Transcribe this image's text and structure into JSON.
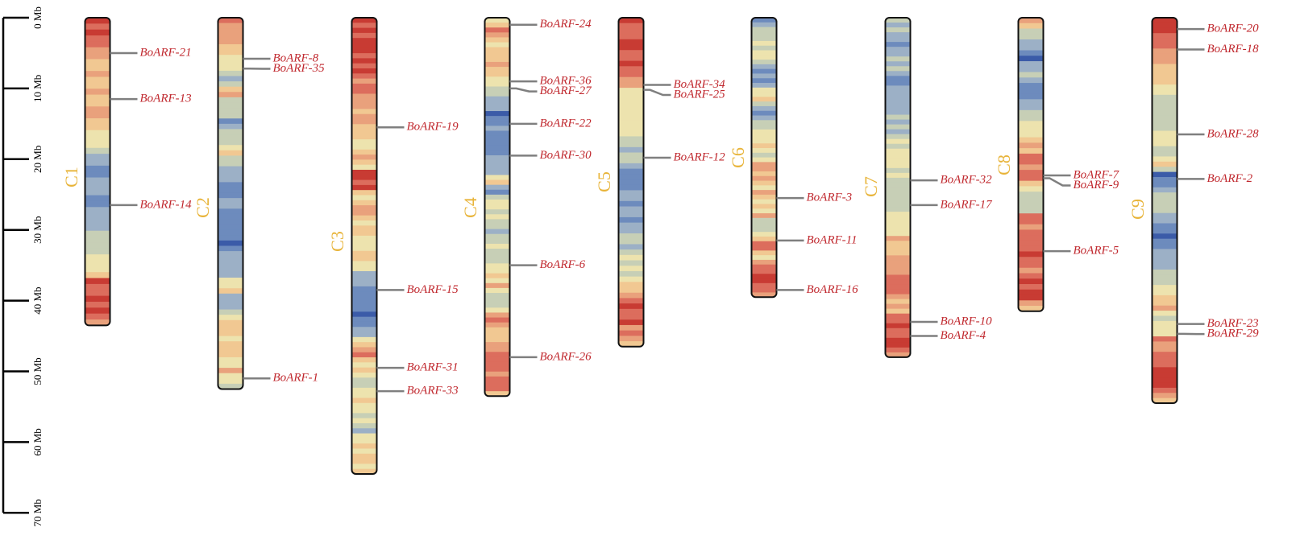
{
  "colors": {
    "gene_label": "#c0282e",
    "chromosome_label": "#e8b43a",
    "connector": "#7f7f7f",
    "outline": "#111111",
    "heat_palette": [
      "#3b5ba8",
      "#6d8bbd",
      "#9cb0c6",
      "#c7cfb6",
      "#ede3ae",
      "#f1c892",
      "#e9a17c",
      "#dc6d5d",
      "#c83b33"
    ]
  },
  "scale": {
    "max_mb": 70,
    "ticks": [
      {
        "value": 0,
        "label": "0 Mb"
      },
      {
        "value": 10,
        "label": "10 Mb"
      },
      {
        "value": 20,
        "label": "20 Mb"
      },
      {
        "value": 30,
        "label": "30 Mb"
      },
      {
        "value": 40,
        "label": "40 Mb"
      },
      {
        "value": 50,
        "label": "50 Mb"
      },
      {
        "value": 60,
        "label": "60 Mb"
      },
      {
        "value": 70,
        "label": "70 Mb"
      }
    ]
  },
  "chromosomes": [
    {
      "name": "C1",
      "length": 43.5,
      "density": [
        8,
        7,
        8,
        7,
        7,
        6,
        6,
        5,
        5,
        6,
        5,
        5,
        6,
        5,
        5,
        6,
        6,
        5,
        5,
        4,
        4,
        4,
        3,
        2,
        2,
        1,
        1,
        2,
        2,
        2,
        1,
        1,
        2,
        2,
        2,
        2,
        3,
        3,
        3,
        3,
        4,
        4,
        4,
        5,
        8,
        7,
        7,
        8,
        7,
        8,
        7,
        6
      ]
    },
    {
      "name": "C2",
      "length": 52.5,
      "density": [
        7,
        6,
        6,
        6,
        6,
        5,
        5,
        4,
        4,
        4,
        3,
        2,
        3,
        5,
        6,
        3,
        3,
        3,
        3,
        1,
        2,
        3,
        3,
        3,
        4,
        5,
        3,
        3,
        2,
        2,
        2,
        1,
        1,
        1,
        2,
        2,
        1,
        1,
        1,
        1,
        1,
        1,
        0,
        1,
        2,
        2,
        2,
        2,
        2,
        4,
        4,
        5,
        2,
        2,
        2,
        3,
        4,
        5,
        5,
        5,
        4,
        5,
        5,
        5,
        4,
        4,
        6,
        4,
        4,
        3
      ]
    },
    {
      "name": "C3",
      "length": 64.5,
      "density": [
        8,
        7,
        8,
        7,
        8,
        8,
        8,
        7,
        8,
        7,
        8,
        7,
        6,
        7,
        7,
        6,
        6,
        6,
        5,
        6,
        6,
        5,
        5,
        5,
        4,
        4,
        5,
        6,
        5,
        4,
        8,
        8,
        7,
        8,
        5,
        4,
        5,
        6,
        6,
        5,
        4,
        5,
        5,
        4,
        4,
        4,
        5,
        5,
        4,
        4,
        2,
        2,
        2,
        1,
        1,
        1,
        1,
        1,
        0,
        1,
        1,
        2,
        2,
        4,
        5,
        6,
        7,
        5,
        4,
        5,
        4,
        3,
        3,
        4,
        4,
        5,
        4,
        4,
        3,
        4,
        3,
        2,
        4,
        4,
        5,
        4,
        5,
        5,
        4,
        5
      ]
    },
    {
      "name": "C4",
      "length": 53.5,
      "density": [
        4,
        5,
        7,
        6,
        5,
        4,
        5,
        5,
        5,
        6,
        5,
        5,
        4,
        4,
        3,
        3,
        2,
        2,
        2,
        0,
        1,
        1,
        2,
        1,
        1,
        1,
        1,
        1,
        2,
        2,
        2,
        2,
        4,
        5,
        2,
        1,
        3,
        4,
        4,
        3,
        4,
        3,
        3,
        2,
        3,
        3,
        4,
        3,
        3,
        3,
        4,
        4,
        5,
        4,
        6,
        4,
        3,
        3,
        3,
        4,
        6,
        7,
        6,
        5,
        5,
        5,
        6,
        6,
        7,
        7,
        7,
        7,
        6,
        7,
        7,
        7,
        5
      ]
    },
    {
      "name": "C5",
      "length": 46.5,
      "density": [
        8,
        7,
        7,
        7,
        8,
        8,
        7,
        7,
        8,
        7,
        7,
        6,
        6,
        4,
        4,
        4,
        4,
        4,
        4,
        4,
        4,
        4,
        3,
        3,
        2,
        3,
        3,
        2,
        1,
        1,
        1,
        1,
        2,
        2,
        1,
        2,
        2,
        1,
        2,
        2,
        3,
        3,
        2,
        3,
        4,
        3,
        4,
        3,
        4,
        5,
        5,
        6,
        7,
        8,
        7,
        7,
        8,
        6,
        7,
        6,
        5
      ]
    },
    {
      "name": "C6",
      "length": 39.5,
      "density": [
        1,
        2,
        3,
        3,
        3,
        4,
        3,
        4,
        4,
        3,
        2,
        1,
        2,
        1,
        2,
        4,
        4,
        5,
        3,
        2,
        1,
        2,
        3,
        3,
        4,
        4,
        4,
        5,
        4,
        3,
        4,
        6,
        6,
        5,
        6,
        5,
        4,
        6,
        5,
        4,
        5,
        4,
        6,
        3,
        3,
        3,
        4,
        5,
        7,
        7,
        5,
        4,
        6,
        7,
        7,
        8,
        8,
        7,
        7,
        6
      ]
    },
    {
      "name": "C7",
      "length": 48,
      "density": [
        3,
        2,
        3,
        2,
        2,
        1,
        2,
        2,
        3,
        2,
        3,
        2,
        1,
        1,
        2,
        2,
        2,
        2,
        2,
        2,
        3,
        2,
        3,
        2,
        3,
        4,
        3,
        4,
        4,
        4,
        4,
        3,
        4,
        3,
        3,
        3,
        3,
        3,
        3,
        3,
        4,
        4,
        4,
        4,
        4,
        6,
        5,
        5,
        5,
        6,
        6,
        6,
        6,
        7,
        7,
        7,
        7,
        6,
        5,
        6,
        5,
        7,
        7,
        8,
        7,
        7,
        8,
        8,
        7,
        6
      ]
    },
    {
      "name": "C8",
      "length": 41.5,
      "density": [
        6,
        5,
        3,
        3,
        2,
        2,
        1,
        0,
        2,
        2,
        3,
        2,
        1,
        1,
        1,
        2,
        2,
        3,
        3,
        4,
        4,
        4,
        5,
        6,
        5,
        7,
        7,
        6,
        7,
        7,
        5,
        4,
        3,
        3,
        3,
        3,
        7,
        7,
        6,
        7,
        7,
        7,
        7,
        8,
        7,
        7,
        6,
        7,
        8,
        7,
        8,
        8,
        6,
        5
      ]
    },
    {
      "name": "C9",
      "length": 54.5,
      "density": [
        8,
        8,
        8,
        7,
        7,
        7,
        6,
        6,
        6,
        5,
        5,
        5,
        5,
        4,
        4,
        3,
        3,
        3,
        3,
        3,
        3,
        3,
        4,
        4,
        4,
        3,
        3,
        4,
        5,
        3,
        0,
        1,
        1,
        2,
        3,
        3,
        3,
        3,
        2,
        2,
        1,
        1,
        0,
        1,
        1,
        2,
        2,
        2,
        2,
        3,
        3,
        3,
        4,
        4,
        5,
        5,
        6,
        4,
        3,
        4,
        4,
        4,
        7,
        6,
        6,
        7,
        7,
        7,
        8,
        8,
        8,
        8,
        7,
        6,
        5
      ]
    }
  ],
  "genes": [
    {
      "chr": "C1",
      "name": "BoARF-21",
      "pos": 5.0
    },
    {
      "chr": "C1",
      "name": "BoARF-13",
      "pos": 11.5
    },
    {
      "chr": "C1",
      "name": "BoARF-14",
      "pos": 26.5
    },
    {
      "chr": "C2",
      "name": "BoARF-8",
      "pos": 5.8
    },
    {
      "chr": "C2",
      "name": "BoARF-35",
      "pos": 7.2
    },
    {
      "chr": "C2",
      "name": "BoARF-1",
      "pos": 51.0
    },
    {
      "chr": "C3",
      "name": "BoARF-19",
      "pos": 15.5
    },
    {
      "chr": "C3",
      "name": "BoARF-15",
      "pos": 38.5
    },
    {
      "chr": "C3",
      "name": "BoARF-31",
      "pos": 49.5
    },
    {
      "chr": "C3",
      "name": "BoARF-33",
      "pos": 52.8
    },
    {
      "chr": "C4",
      "name": "BoARF-24",
      "pos": 1.0
    },
    {
      "chr": "C4",
      "name": "BoARF-36",
      "pos": 9.0
    },
    {
      "chr": "C4",
      "name": "BoARF-27",
      "pos": 10.0
    },
    {
      "chr": "C4",
      "name": "BoARF-22",
      "pos": 15.0
    },
    {
      "chr": "C4",
      "name": "BoARF-30",
      "pos": 19.5
    },
    {
      "chr": "C4",
      "name": "BoARF-6",
      "pos": 35.0
    },
    {
      "chr": "C4",
      "name": "BoARF-26",
      "pos": 48.0
    },
    {
      "chr": "C5",
      "name": "BoARF-34",
      "pos": 9.5
    },
    {
      "chr": "C5",
      "name": "BoARF-25",
      "pos": 10.2
    },
    {
      "chr": "C5",
      "name": "BoARF-12",
      "pos": 19.8
    },
    {
      "chr": "C6",
      "name": "BoARF-3",
      "pos": 25.5
    },
    {
      "chr": "C6",
      "name": "BoARF-11",
      "pos": 31.5
    },
    {
      "chr": "C6",
      "name": "BoARF-16",
      "pos": 38.5
    },
    {
      "chr": "C7",
      "name": "BoARF-32",
      "pos": 23.0
    },
    {
      "chr": "C7",
      "name": "BoARF-17",
      "pos": 26.5
    },
    {
      "chr": "C7",
      "name": "BoARF-10",
      "pos": 43.0
    },
    {
      "chr": "C7",
      "name": "BoARF-4",
      "pos": 45.0
    },
    {
      "chr": "C8",
      "name": "BoARF-7",
      "pos": 22.3
    },
    {
      "chr": "C8",
      "name": "BoARF-9",
      "pos": 22.7
    },
    {
      "chr": "C8",
      "name": "BoARF-5",
      "pos": 33.0
    },
    {
      "chr": "C9",
      "name": "BoARF-20",
      "pos": 1.6
    },
    {
      "chr": "C9",
      "name": "BoARF-18",
      "pos": 4.5
    },
    {
      "chr": "C9",
      "name": "BoARF-28",
      "pos": 16.5
    },
    {
      "chr": "C9",
      "name": "BoARF-2",
      "pos": 22.8
    },
    {
      "chr": "C9",
      "name": "BoARF-23",
      "pos": 43.3
    },
    {
      "chr": "C9",
      "name": "BoARF-29",
      "pos": 44.7
    }
  ]
}
